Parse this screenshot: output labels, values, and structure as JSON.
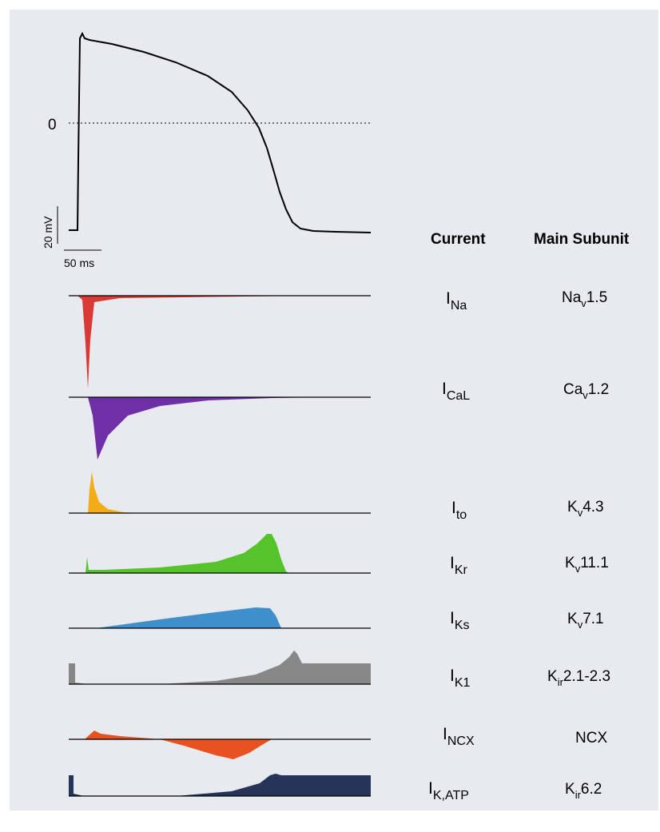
{
  "action_potential": {
    "zero_label": "0",
    "voltage_scale_label": "20 mV",
    "time_scale_label": "50 ms"
  },
  "table": {
    "current_header": "Current",
    "subunit_header": "Main Subunit",
    "rows": [
      {
        "id": "na",
        "current_main": "I",
        "current_sub": "Na",
        "subunit_main": "Na",
        "subunit_sub": "v",
        "subunit_tail": "1.5",
        "color": "#d93a35"
      },
      {
        "id": "cal",
        "current_main": "I",
        "current_sub": "CaL",
        "subunit_main": "Ca",
        "subunit_sub": "v",
        "subunit_tail": "1.2",
        "color": "#6f2fa6"
      },
      {
        "id": "to",
        "current_main": "I",
        "current_sub": "to",
        "subunit_main": "K",
        "subunit_sub": "v",
        "subunit_tail": "4.3",
        "color": "#f2ac15"
      },
      {
        "id": "kr",
        "current_main": "I",
        "current_sub": "Kr",
        "subunit_main": "K",
        "subunit_sub": "v",
        "subunit_tail": "11.1",
        "color": "#55c42a"
      },
      {
        "id": "ks",
        "current_main": "I",
        "current_sub": "Ks",
        "subunit_main": "K",
        "subunit_sub": "v",
        "subunit_tail": "7.1",
        "color": "#3f8fcd"
      },
      {
        "id": "k1",
        "current_main": "I",
        "current_sub": "K1",
        "subunit_main": "K",
        "subunit_sub": "ir",
        "subunit_tail": "2.1-2.3",
        "color": "#878787"
      },
      {
        "id": "ncx",
        "current_main": "I",
        "current_sub": "NCX",
        "subunit_main": "NCX",
        "subunit_sub": "",
        "subunit_tail": "",
        "color": "#e85120"
      },
      {
        "id": "katp",
        "current_main": "I",
        "current_sub": "K,ATP",
        "subunit_main": "K",
        "subunit_sub": "ir",
        "subunit_tail": "6.2",
        "color": "#27345a"
      }
    ]
  }
}
